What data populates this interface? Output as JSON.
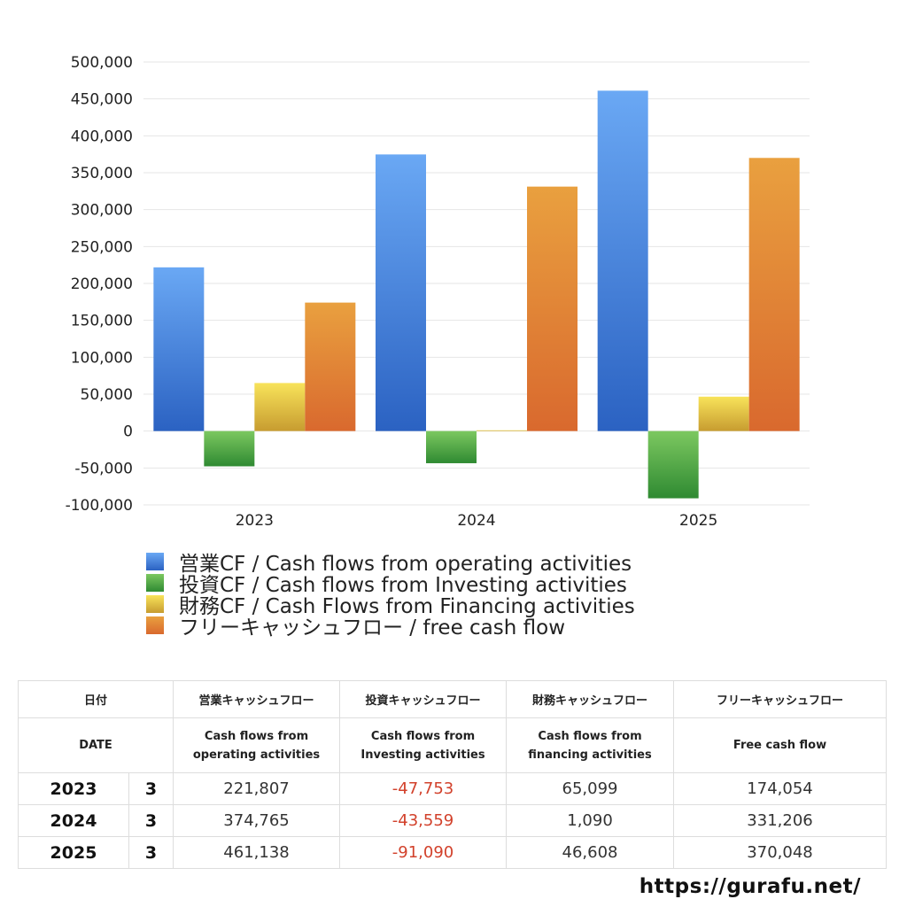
{
  "chart_data": {
    "type": "bar",
    "categories": [
      "2023",
      "2024",
      "2025"
    ],
    "ylim": [
      -100000,
      500000
    ],
    "ytick_labels": [
      "500,000",
      "450,000",
      "400,000",
      "350,000",
      "300,000",
      "250,000",
      "200,000",
      "150,000",
      "100,000",
      "50,000",
      "0",
      "-50,000",
      "-100,000"
    ],
    "grid": true,
    "legend_position": "bottom",
    "series": [
      {
        "name": "営業CF / Cash flows from operating activities",
        "values": [
          221807,
          374765,
          461138
        ],
        "color": "#3f7fdc"
      },
      {
        "name": "投資CF / Cash flows from Investing activities",
        "values": [
          -47753,
          -43559,
          -91090
        ],
        "color": "#4ea646"
      },
      {
        "name": "財務CF / Cash Flows from Financing activities",
        "values": [
          65099,
          1090,
          46608
        ],
        "color": "#e3c440"
      },
      {
        "name": "フリーキャッシュフロー / free cash flow",
        "values": [
          174054,
          331206,
          370048
        ],
        "color": "#e58a3a"
      }
    ]
  },
  "table": {
    "header_jp": [
      "日付",
      "営業キャッシュフロー",
      "投資キャッシュフロー",
      "財務キャッシュフロー",
      "フリーキャッシュフロー"
    ],
    "header_en_date": "DATE",
    "header_en": [
      [
        "Cash flows from",
        "operating activities"
      ],
      [
        "Cash flows from",
        "Investing activities"
      ],
      [
        "Cash flows from",
        "financing activities"
      ],
      [
        "Free cash flow",
        ""
      ]
    ],
    "rows": [
      {
        "year": "2023",
        "month": "3",
        "values": [
          "221,807",
          "-47,753",
          "65,099",
          "174,054"
        ]
      },
      {
        "year": "2024",
        "month": "3",
        "values": [
          "374,765",
          "-43,559",
          "1,090",
          "331,206"
        ]
      },
      {
        "year": "2025",
        "month": "3",
        "values": [
          "461,138",
          "-91,090",
          "46,608",
          "370,048"
        ]
      }
    ],
    "negative_color": "#d2412b"
  },
  "footer": {
    "site": "https://gurafu.net/"
  }
}
